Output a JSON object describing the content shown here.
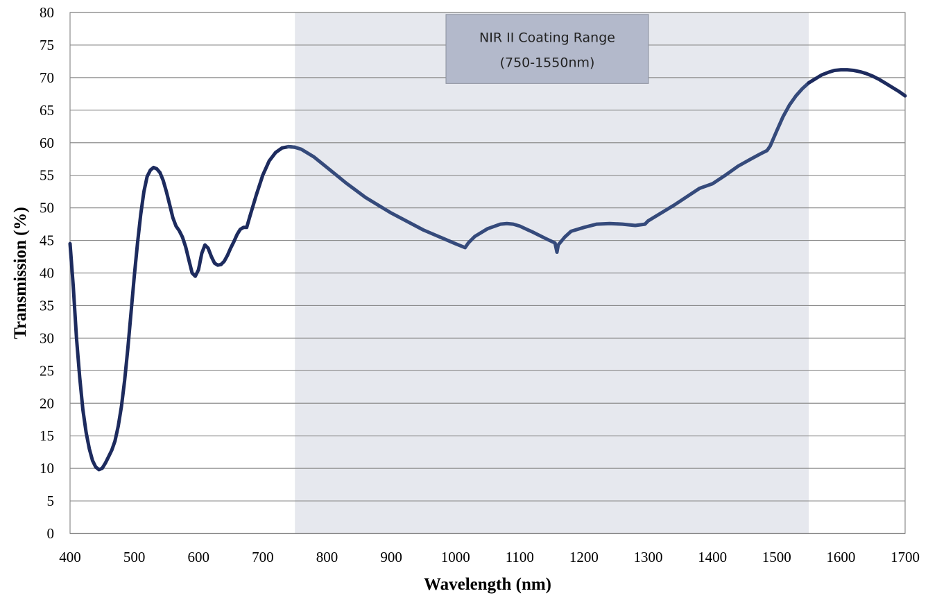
{
  "chart_data": {
    "type": "line",
    "title": "",
    "xlabel": "Wavelength (nm)",
    "ylabel": "Transmission (%)",
    "xlim": [
      400,
      1700
    ],
    "ylim": [
      0,
      80
    ],
    "x_ticks": [
      400,
      500,
      600,
      700,
      800,
      900,
      1000,
      1100,
      1200,
      1300,
      1400,
      1500,
      1600,
      1700
    ],
    "y_ticks": [
      0,
      5,
      10,
      15,
      20,
      25,
      30,
      35,
      40,
      45,
      50,
      55,
      60,
      65,
      70,
      75,
      80
    ],
    "grid": "horizontal",
    "shaded_region": {
      "x_range": [
        750,
        1550
      ],
      "label_line1": "NIR II Coating Range",
      "label_line2": "(750-1550nm)",
      "fill_color": "#e6e8ee",
      "box_color": "#b3b9cb"
    },
    "series": [
      {
        "color_outside": "#1d2b5e",
        "color_inside": "#354a7b",
        "points": [
          [
            400,
            44.5
          ],
          [
            405,
            38
          ],
          [
            410,
            30
          ],
          [
            415,
            24
          ],
          [
            420,
            19
          ],
          [
            425,
            15.5
          ],
          [
            430,
            13
          ],
          [
            435,
            11.2
          ],
          [
            440,
            10.2
          ],
          [
            445,
            9.8
          ],
          [
            450,
            10
          ],
          [
            455,
            10.8
          ],
          [
            460,
            11.8
          ],
          [
            465,
            12.8
          ],
          [
            470,
            14.2
          ],
          [
            475,
            16.5
          ],
          [
            480,
            19.5
          ],
          [
            485,
            23.5
          ],
          [
            490,
            28.5
          ],
          [
            495,
            34
          ],
          [
            500,
            39.5
          ],
          [
            505,
            44.5
          ],
          [
            510,
            49
          ],
          [
            515,
            52.5
          ],
          [
            520,
            54.8
          ],
          [
            525,
            55.8
          ],
          [
            530,
            56.2
          ],
          [
            535,
            56
          ],
          [
            540,
            55.4
          ],
          [
            545,
            54.2
          ],
          [
            550,
            52.5
          ],
          [
            555,
            50.5
          ],
          [
            560,
            48.5
          ],
          [
            565,
            47.2
          ],
          [
            570,
            46.5
          ],
          [
            575,
            45.5
          ],
          [
            580,
            44
          ],
          [
            585,
            42
          ],
          [
            590,
            40
          ],
          [
            595,
            39.5
          ],
          [
            600,
            40.5
          ],
          [
            605,
            43
          ],
          [
            610,
            44.3
          ],
          [
            615,
            43.8
          ],
          [
            620,
            42.5
          ],
          [
            625,
            41.5
          ],
          [
            630,
            41.2
          ],
          [
            635,
            41.3
          ],
          [
            640,
            41.8
          ],
          [
            645,
            42.7
          ],
          [
            650,
            43.8
          ],
          [
            655,
            44.8
          ],
          [
            660,
            45.9
          ],
          [
            665,
            46.7
          ],
          [
            670,
            47
          ],
          [
            675,
            47
          ],
          [
            680,
            48.7
          ],
          [
            690,
            52
          ],
          [
            700,
            55
          ],
          [
            710,
            57.2
          ],
          [
            720,
            58.5
          ],
          [
            730,
            59.2
          ],
          [
            740,
            59.4
          ],
          [
            750,
            59.3
          ],
          [
            760,
            59
          ],
          [
            780,
            57.8
          ],
          [
            800,
            56.2
          ],
          [
            830,
            53.8
          ],
          [
            860,
            51.6
          ],
          [
            900,
            49.2
          ],
          [
            950,
            46.6
          ],
          [
            1000,
            44.5
          ],
          [
            1015,
            43.9
          ],
          [
            1020,
            44.6
          ],
          [
            1030,
            45.6
          ],
          [
            1050,
            46.8
          ],
          [
            1070,
            47.5
          ],
          [
            1080,
            47.6
          ],
          [
            1090,
            47.5
          ],
          [
            1100,
            47.2
          ],
          [
            1120,
            46.3
          ],
          [
            1140,
            45.3
          ],
          [
            1155,
            44.6
          ],
          [
            1158,
            43.2
          ],
          [
            1160,
            44.3
          ],
          [
            1170,
            45.5
          ],
          [
            1180,
            46.4
          ],
          [
            1200,
            47
          ],
          [
            1220,
            47.5
          ],
          [
            1240,
            47.6
          ],
          [
            1260,
            47.5
          ],
          [
            1280,
            47.3
          ],
          [
            1295,
            47.5
          ],
          [
            1300,
            48
          ],
          [
            1320,
            49.2
          ],
          [
            1340,
            50.4
          ],
          [
            1360,
            51.7
          ],
          [
            1380,
            53
          ],
          [
            1400,
            53.7
          ],
          [
            1420,
            55
          ],
          [
            1440,
            56.4
          ],
          [
            1460,
            57.5
          ],
          [
            1475,
            58.3
          ],
          [
            1485,
            58.8
          ],
          [
            1490,
            59.5
          ],
          [
            1500,
            61.8
          ],
          [
            1510,
            64
          ],
          [
            1520,
            65.8
          ],
          [
            1530,
            67.2
          ],
          [
            1540,
            68.3
          ],
          [
            1550,
            69.2
          ],
          [
            1560,
            69.8
          ],
          [
            1570,
            70.4
          ],
          [
            1580,
            70.8
          ],
          [
            1590,
            71.1
          ],
          [
            1600,
            71.2
          ],
          [
            1610,
            71.2
          ],
          [
            1620,
            71.1
          ],
          [
            1630,
            70.9
          ],
          [
            1640,
            70.6
          ],
          [
            1650,
            70.2
          ],
          [
            1660,
            69.7
          ],
          [
            1670,
            69.1
          ],
          [
            1680,
            68.5
          ],
          [
            1690,
            67.9
          ],
          [
            1700,
            67.2
          ]
        ]
      }
    ]
  }
}
